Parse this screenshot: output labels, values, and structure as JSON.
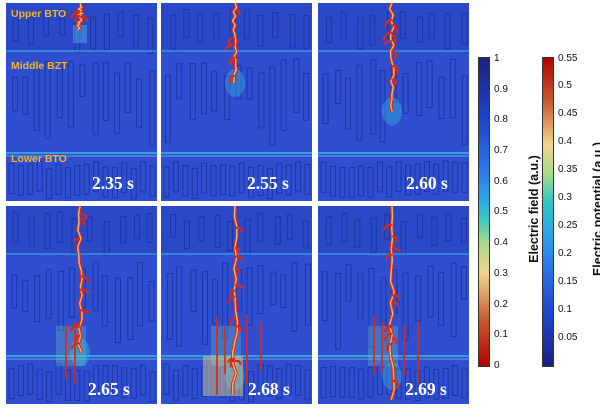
{
  "layers": {
    "upper": "Upper BTO",
    "middle": "Middle BZT",
    "lower": "Lower BTO",
    "label_color": "#f2b42a"
  },
  "panels": [
    {
      "time": "2.35 s",
      "tree_depth": 0.12,
      "stage": 0
    },
    {
      "time": "2.55 s",
      "tree_depth": 0.4,
      "stage": 1
    },
    {
      "time": "2.60 s",
      "tree_depth": 0.55,
      "stage": 1
    },
    {
      "time": "2.65 s",
      "tree_depth": 0.75,
      "stage": 2
    },
    {
      "time": "2.68 s",
      "tree_depth": 0.97,
      "stage": 3
    },
    {
      "time": "2.69 s",
      "tree_depth": 1.0,
      "stage": 3
    }
  ],
  "colorbars": {
    "field": {
      "title": "Electric field (a.u.)",
      "ticks": [
        "1",
        "0.9",
        "0.8",
        "0.7",
        "0.6",
        "0.5",
        "0.4",
        "0.3",
        "0.2",
        "0.1",
        "0"
      ]
    },
    "potential": {
      "title": "Electric potential (a.u.)",
      "ticks": [
        "0.55",
        "0.5",
        "0.45",
        "0.4",
        "0.35",
        "0.3",
        "0.25",
        "0.2",
        "0.15",
        "0.1",
        "0.05"
      ]
    }
  },
  "colors": {
    "background_field": "#2f4fd0",
    "grain_edge": "#1d36a8",
    "interface": "#3aa6e0",
    "tree_core": "#f4b86a",
    "tree_edge": "#d62a1a"
  }
}
